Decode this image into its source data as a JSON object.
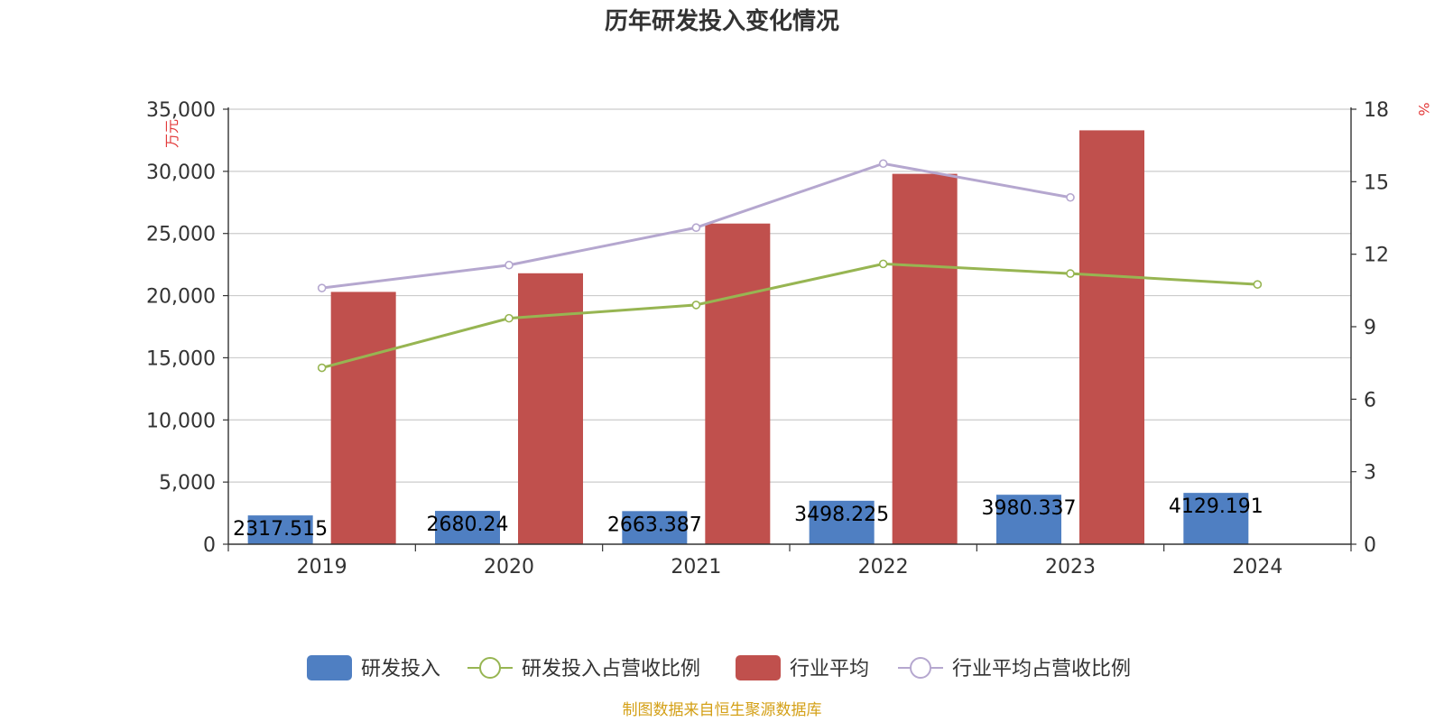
{
  "chart_data": {
    "type": "bar",
    "title": "历年研发投入变化情况",
    "categories": [
      "2019",
      "2020",
      "2021",
      "2022",
      "2023",
      "2024"
    ],
    "y_left": {
      "unit": "万元",
      "ylim": [
        0,
        35000
      ],
      "ticks": [
        "0",
        "5,000",
        "10,000",
        "15,000",
        "20,000",
        "25,000",
        "30,000",
        "35,000"
      ]
    },
    "y_right": {
      "unit": "%",
      "ylim": [
        0,
        18
      ],
      "ticks": [
        "0",
        "3",
        "6",
        "9",
        "12",
        "15",
        "18"
      ]
    },
    "series": [
      {
        "name": "研发投入",
        "type": "bar",
        "axis": "left",
        "color": "#4f7fc2",
        "values": [
          2317.515,
          2680.24,
          2663.387,
          3498.225,
          3980.337,
          4129.191
        ],
        "labels": [
          "2317.515",
          "2680.24",
          "2663.387",
          "3498.225",
          "3980.337",
          "4129.191"
        ]
      },
      {
        "name": "研发投入占营收比例",
        "type": "line",
        "axis": "right",
        "color": "#97b552",
        "values": [
          7.3,
          9.35,
          9.9,
          11.6,
          11.2,
          10.75
        ]
      },
      {
        "name": "行业平均",
        "type": "bar",
        "axis": "left",
        "color": "#c0504d",
        "values": [
          20300,
          21800,
          25800,
          29800,
          33300,
          null
        ]
      },
      {
        "name": "行业平均占营收比例",
        "type": "line",
        "axis": "right",
        "color": "#b5a7cf",
        "values": [
          10.6,
          11.55,
          13.1,
          15.75,
          14.35,
          null
        ]
      }
    ],
    "grid": true,
    "legend_position": "bottom"
  },
  "source": "制图数据来自恒生聚源数据库"
}
